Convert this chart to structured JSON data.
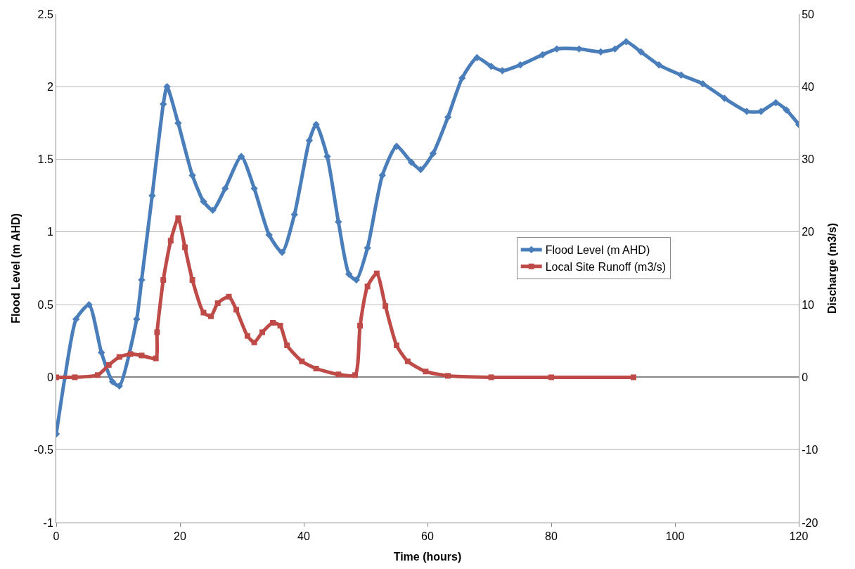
{
  "chart_data": {
    "type": "line",
    "xlabel": "Time (hours)",
    "ylabel": "Flood Level (m AHD)",
    "y2label": "Discharge (m3/s)",
    "xlim": [
      0,
      120
    ],
    "xticks": [
      0,
      20,
      40,
      60,
      80,
      100,
      120
    ],
    "ylim": [
      -1,
      2.5
    ],
    "yticks": [
      -1,
      -0.5,
      0,
      0.5,
      1,
      1.5,
      2,
      2.5
    ],
    "y2lim": [
      -20,
      50
    ],
    "y2ticks": [
      -20,
      -10,
      0,
      10,
      20,
      30,
      40,
      50
    ],
    "grid": "y",
    "legend": "right",
    "series": [
      {
        "name": "Flood Level (m AHD)",
        "color": "#4a7ebb",
        "marker": "diamond",
        "x": [
          0,
          1.4,
          3.2,
          5.3,
          7.3,
          9.1,
          10.2,
          13,
          13.8,
          15.5,
          17.3,
          17.9,
          19.7,
          22,
          23.8,
          25.3,
          27.3,
          29.9,
          32,
          34.4,
          36.5,
          38.5,
          40.9,
          42,
          43.8,
          45.6,
          47.3,
          48.5,
          50.3,
          52.7,
          55,
          57.4,
          58.9,
          60.9,
          63.3,
          65.6,
          68,
          70.3,
          72.1,
          75,
          78.6,
          80.9,
          84.5,
          88,
          90.3,
          92.1,
          94.5,
          97.4,
          101,
          104.5,
          108,
          111.6,
          113.9,
          116.3,
          118,
          120
        ],
        "values": [
          -0.39,
          0,
          0.4,
          0.5,
          0.17,
          -0.03,
          -0.06,
          0.4,
          0.67,
          1.25,
          1.88,
          2.0,
          1.75,
          1.39,
          1.21,
          1.15,
          1.3,
          1.52,
          1.3,
          0.98,
          0.86,
          1.12,
          1.63,
          1.74,
          1.52,
          1.07,
          0.71,
          0.67,
          0.89,
          1.39,
          1.59,
          1.48,
          1.43,
          1.54,
          1.79,
          2.06,
          2.2,
          2.14,
          2.11,
          2.15,
          2.22,
          2.26,
          2.26,
          2.24,
          2.26,
          2.31,
          2.24,
          2.15,
          2.08,
          2.02,
          1.92,
          1.83,
          1.83,
          1.89,
          1.84,
          1.74
        ]
      },
      {
        "name": "Local Site Runoff (m3/s)",
        "color": "#be4b48",
        "marker": "square",
        "axis": "y2",
        "x": [
          0,
          3,
          6.7,
          8.5,
          10.2,
          12,
          13.8,
          16.1,
          16.3,
          17.3,
          18.5,
          19.7,
          20.8,
          22,
          23.8,
          25,
          26.1,
          27.9,
          29.1,
          30.9,
          32,
          33.3,
          35,
          36.2,
          37.3,
          39.7,
          42,
          45.6,
          48.3,
          49.1,
          50.3,
          51.8,
          53.2,
          55,
          56.8,
          59.7,
          63.3,
          70.3,
          80,
          93.3
        ],
        "values": [
          0,
          0,
          0.3,
          1.7,
          2.8,
          3.2,
          3.0,
          2.6,
          6.2,
          13.4,
          18.8,
          21.9,
          17.9,
          13.4,
          8.9,
          8.4,
          10.2,
          11.1,
          9.3,
          5.7,
          4.8,
          6.2,
          7.5,
          7.1,
          4.4,
          2.2,
          1.2,
          0.4,
          0.3,
          7.1,
          12.5,
          14.3,
          9.8,
          4.4,
          2.2,
          0.8,
          0.2,
          0,
          0,
          0
        ]
      }
    ]
  }
}
